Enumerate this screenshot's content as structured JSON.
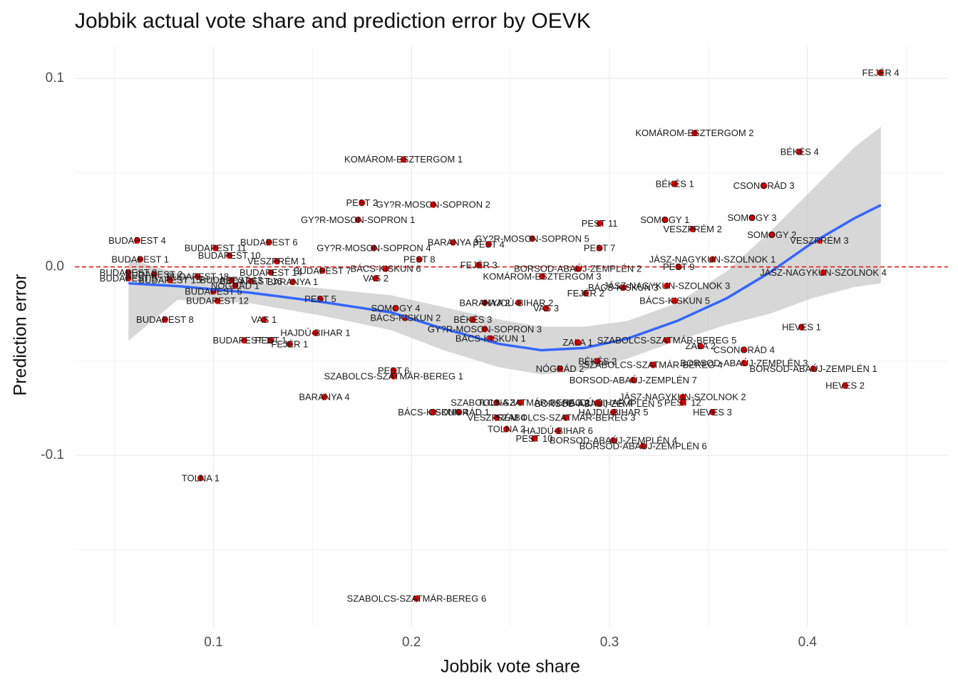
{
  "chart_data": {
    "type": "scatter",
    "title": "Jobbik actual vote share and prediction error by OEVK",
    "x_label": "Jobbik vote share",
    "y_label": "Prediction error",
    "xlim": [
      0.03,
      0.471
    ],
    "ylim": [
      -0.191,
      0.117
    ],
    "xticks": [
      0.1,
      0.2,
      0.3,
      0.4
    ],
    "yticks": [
      -0.1,
      {
        "value": 0,
        "label": "0.0"
      },
      0.1
    ],
    "xminor": [
      0.05,
      0.15,
      0.25,
      0.35,
      0.45
    ],
    "yminor": [
      -0.15,
      -0.05,
      0.05
    ],
    "grid": true,
    "hline": 0,
    "hline_color": "#e41a1c",
    "color": "#d40000",
    "labels": [
      "FEJÉR 4",
      "KOMÁROM-ESZTERGOM 2",
      "BÉKÉS 4",
      "KOMÁROM-ESZTERGOM 1",
      "BÉKÉS 1",
      "CSONGRÁD 3",
      "PEST 2",
      "GY?R-MOSON-SOPRON 2",
      "SOMOGY 1",
      "SOMOGY 3",
      "GY?R-MOSON-SOPRON 1",
      "PEST 11",
      "VESZPRÉM 2",
      "SOMOGY 2",
      "GY?R-MOSON-SOPRON 5",
      "VESZPRÉM 3",
      "BUDAPEST 4",
      "BUDAPEST 6",
      "BARANYA 3",
      "PEST 4",
      "BUDAPEST 11",
      "GY?R-MOSON-SOPRON 4",
      "PEST 7",
      "BUDAPEST 10",
      "BUDAPEST 1",
      "PEST 8",
      "JÁSZ-NAGYKUN-SZOLNOK 1",
      "VESZPRÉM 1",
      "FEJÉR 3",
      "PEST 9",
      "BORSOD-ABAÚJ-ZEMPLÉN 2",
      "BÁCS-KISKUN 6",
      "BUDAPEST 7",
      "BUDAPEST 14",
      "BUDAPEST 3",
      "JÁSZ-NAGYKUN-SZOLNOK 4",
      "KOMÁROM-ESZTERGOM 3",
      "BUDAPEST 2",
      "BUDAPEST 18",
      "VAS 2",
      "BUDAPEST 9",
      "BUDAPEST 15",
      "BUDAPEST 13",
      "BUDAPEST 16",
      "BARANYA 1",
      "JÁSZ-NAGYKUN-SZOLNOK 3",
      "BÁCS-KISKUN 3",
      "BUDAPEST 5",
      "FEJÉR 2",
      "NÓGRÁD 1",
      "BUDAPEST 12",
      "PEST 5",
      "BÁCS-KISKUN 5",
      "BARANYA 2",
      "HAJDÚ-BIHAR 2",
      "VAS 3",
      "SOMOGY 4",
      "BÁCS-KISKUN 2",
      "BÉKÉS 3",
      "BUDAPEST 8",
      "VAS 1",
      "GY?R-MOSON-SOPRON 3",
      "HEVES 1",
      "HAJDÚ-BIHAR 1",
      "BÁCS-KISKUN 1",
      "SZABOLCS-SZATMÁR-BEREG 5",
      "BUDAPEST 17",
      "PEST 1",
      "FEJÉR 1",
      "ZALA 1",
      "ZALA 2",
      "CSONGRÁD 4",
      "BÉKÉS 2",
      "SZABOLCS-SZATMÁR-BEREG 4",
      "BORSOD-ABAÚJ-ZEMPLÉN 3",
      "BORSOD-ABAÚJ-ZEMPLÉN 1",
      "PEST 6",
      "NÓGRÁD 2",
      "BORSOD-ABAÚJ-ZEMPLÉN 7",
      "HEVES 2",
      "BARANYA 4",
      "JÁSZ-NAGYKUN-SZOLNOK 2",
      "PEST 12",
      "SZABOLCS-SZATMÁR-BEREG 2",
      "TOLNA 3",
      "HAJDÚ-BIHAR 4",
      "BÁCS-KISKUN 4",
      "CSONGRÁD 1",
      "SZABOLCS-SZATMÁR-BEREG 1",
      "HAJDÚ-BIHAR 5",
      "HEVES 3",
      "VESZPRÉM 4",
      "SZABOLCS-SZATMÁR-BEREG 3",
      "TOLNA 2",
      "HAJDÚ-BIHAR 6",
      "PEST 10",
      "BORSOD-ABAÚJ-ZEMPLÉN 4",
      "BORSOD-ABAÚJ-ZEMPLÉN 6",
      "TOLNA 1",
      "SZABOLCS-SZATMÁR-BEREG 6",
      "BORSOD-ABAÚJ-ZEMPLÉN 5"
    ],
    "x": [
      0.437,
      0.343,
      0.396,
      0.196,
      0.333,
      0.378,
      0.175,
      0.211,
      0.328,
      0.372,
      0.173,
      0.295,
      0.342,
      0.382,
      0.261,
      0.406,
      0.0615,
      0.128,
      0.221,
      0.239,
      0.101,
      0.181,
      0.295,
      0.108,
      0.063,
      0.204,
      0.352,
      0.132,
      0.234,
      0.335,
      0.284,
      0.187,
      0.155,
      0.129,
      0.057,
      0.408,
      0.266,
      0.07,
      0.092,
      0.182,
      0.057,
      0.078,
      0.109,
      0.119,
      0.14,
      0.329,
      0.307,
      0.1,
      0.288,
      0.111,
      0.102,
      0.154,
      0.333,
      0.237,
      0.254,
      0.268,
      0.192,
      0.197,
      0.231,
      0.0755,
      0.1255,
      0.237,
      0.397,
      0.1515,
      0.24,
      0.329,
      0.1155,
      0.129,
      0.1385,
      0.284,
      0.346,
      0.368,
      0.294,
      0.322,
      0.368,
      0.403,
      0.191,
      0.275,
      0.312,
      0.419,
      0.156,
      0.337,
      0.337,
      0.255,
      0.243,
      0.294,
      0.211,
      0.224,
      0.191,
      0.302,
      0.352,
      0.243,
      0.278,
      0.248,
      0.274,
      0.262,
      0.302,
      0.317,
      0.0935,
      0.2026,
      0.2945
    ],
    "values": [
      0.103,
      0.071,
      0.061,
      0.057,
      0.044,
      0.043,
      0.034,
      0.033,
      0.025,
      0.026,
      0.025,
      0.023,
      0.02,
      0.017,
      0.015,
      0.014,
      0.014,
      0.013,
      0.013,
      0.012,
      0.01,
      0.01,
      0.01,
      0.006,
      0.004,
      0.004,
      0.004,
      0.003,
      0.001,
      0.0,
      -0.001,
      -0.001,
      -0.002,
      -0.003,
      -0.003,
      -0.003,
      -0.005,
      -0.004,
      -0.005,
      -0.006,
      -0.006,
      -0.007,
      -0.007,
      -0.0075,
      -0.008,
      -0.01,
      -0.011,
      -0.013,
      -0.014,
      -0.01,
      -0.018,
      -0.017,
      -0.018,
      -0.019,
      -0.019,
      -0.022,
      -0.022,
      -0.027,
      -0.028,
      -0.028,
      -0.028,
      -0.033,
      -0.032,
      -0.035,
      -0.038,
      -0.039,
      -0.039,
      -0.039,
      -0.041,
      -0.04,
      -0.042,
      -0.044,
      -0.05,
      -0.052,
      -0.051,
      -0.054,
      -0.055,
      -0.054,
      -0.06,
      -0.063,
      -0.069,
      -0.069,
      -0.072,
      -0.072,
      -0.072,
      -0.072,
      -0.077,
      -0.077,
      -0.058,
      -0.077,
      -0.077,
      -0.08,
      -0.08,
      -0.086,
      -0.087,
      -0.091,
      -0.092,
      -0.095,
      -0.112,
      -0.176,
      -0.0725
    ],
    "smooth": {
      "color": "#3366ff",
      "band_color": "#bdbdbd",
      "x": [
        0.0571,
        0.082,
        0.118,
        0.154,
        0.19,
        0.2152,
        0.244,
        0.2656,
        0.2873,
        0.3089,
        0.3341,
        0.3593,
        0.3809,
        0.4025,
        0.4241,
        0.4371
      ],
      "fit": [
        -0.0087,
        -0.0102,
        -0.0136,
        -0.0185,
        -0.0242,
        -0.0325,
        -0.0408,
        -0.0442,
        -0.043,
        -0.0381,
        -0.0287,
        -0.0166,
        -0.003,
        0.0128,
        0.026,
        0.0328
      ],
      "upper": [
        0.0042,
        -0.0034,
        -0.0083,
        -0.0113,
        -0.0151,
        -0.0211,
        -0.0279,
        -0.0317,
        -0.0317,
        -0.0287,
        -0.0192,
        -0.0023,
        0.0185,
        0.0411,
        0.0638,
        0.0743
      ],
      "lower": [
        -0.0392,
        -0.0174,
        -0.0192,
        -0.0257,
        -0.0336,
        -0.0438,
        -0.0532,
        -0.057,
        -0.0551,
        -0.0487,
        -0.0392,
        -0.0306,
        -0.0249,
        -0.0166,
        -0.0106,
        -0.0087
      ]
    }
  }
}
